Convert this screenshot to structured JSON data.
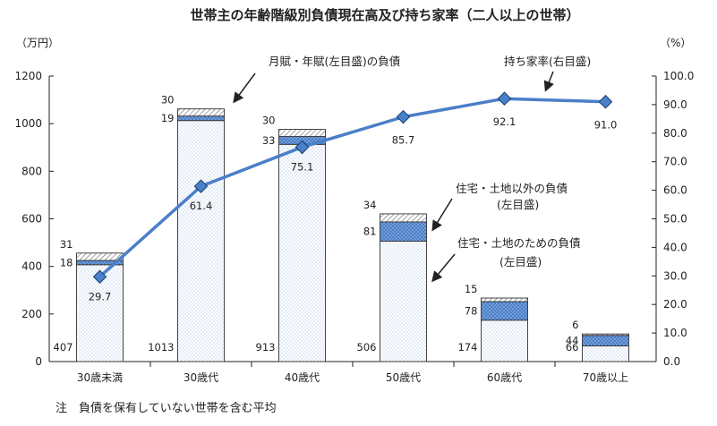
{
  "chart_data": {
    "type": "bar",
    "title": "世帯主の年齢階級別負債現在高及び持ち家率（二人以上の世帯）",
    "categories": [
      "30歳未満",
      "30歳代",
      "40歳代",
      "50歳代",
      "60歳代",
      "70歳以上"
    ],
    "stack_order": [
      "housing",
      "other",
      "annual"
    ],
    "series": [
      {
        "key": "housing",
        "name": "住宅・土地のための負債",
        "values": [
          407,
          1013,
          913,
          506,
          174,
          66
        ],
        "color": "#ffffff"
      },
      {
        "key": "other",
        "name": "住宅・土地以外の負債",
        "values": [
          18,
          19,
          33,
          81,
          78,
          44
        ],
        "color": "#4a7fc9"
      },
      {
        "key": "annual",
        "name": "月賦・年賦(左目盛)の負債",
        "values": [
          31,
          30,
          30,
          34,
          15,
          6
        ],
        "color": "#ffffff"
      }
    ],
    "line": {
      "name": "持ち家率(右目盛)",
      "values": [
        29.7,
        61.4,
        75.1,
        85.7,
        92.1,
        91.0
      ],
      "labels": [
        "29.7",
        "61.4",
        "75.1",
        "85.7",
        "92.1",
        "91.0"
      ],
      "color": "#4a7fc9"
    },
    "left_axis": {
      "unit": "（万円）",
      "min": 0,
      "max": 1200,
      "ticks": [
        "0",
        "200",
        "400",
        "600",
        "800",
        "1000",
        "1200"
      ]
    },
    "right_axis": {
      "unit": "（%）",
      "min": 0,
      "max": 100,
      "ticks": [
        "0.0",
        "10.0",
        "20.0",
        "30.0",
        "40.0",
        "50.0",
        "60.0",
        "70.0",
        "80.0",
        "90.0",
        "100.0"
      ]
    },
    "annotations": {
      "annual": "月賦・年賦(左目盛)の負債",
      "line": "持ち家率(右目盛)",
      "other_1": "住宅・土地以外の負債",
      "other_2": "(左目盛)",
      "housing_1": "住宅・土地のための負債",
      "housing_2": "(左目盛)"
    },
    "note": "注　負債を保有していない世帯を含む平均",
    "grid": false
  }
}
